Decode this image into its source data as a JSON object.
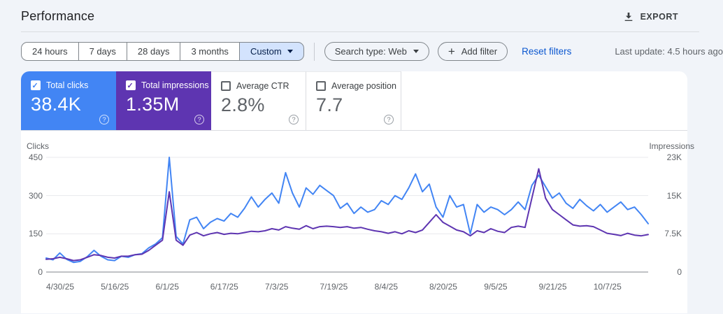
{
  "header": {
    "title": "Performance",
    "export_label": "EXPORT"
  },
  "filters": {
    "date_ranges": [
      "24 hours",
      "7 days",
      "28 days",
      "3 months",
      "Custom"
    ],
    "selected_range": "Custom",
    "search_type": "Search type: Web",
    "add_filter_label": "Add filter",
    "reset_filters_label": "Reset filters",
    "last_update": "Last update: 4.5 hours ago"
  },
  "metric_cards": [
    {
      "label": "Total clicks",
      "value": "38.4K",
      "checked": true,
      "color": "#4285f4"
    },
    {
      "label": "Total impressions",
      "value": "1.35M",
      "checked": true,
      "color": "#5e35b1"
    },
    {
      "label": "Average CTR",
      "value": "2.8%",
      "checked": false
    },
    {
      "label": "Average position",
      "value": "7.7",
      "checked": false
    }
  ],
  "chart_data": {
    "type": "line",
    "x_tick_labels": [
      "4/30/25",
      "5/16/25",
      "6/1/25",
      "6/17/25",
      "7/3/25",
      "7/19/25",
      "8/4/25",
      "8/20/25",
      "9/5/25",
      "9/21/25",
      "10/7/25"
    ],
    "x_start": "4/30/25",
    "sample_interval_days": 2,
    "left_axis": {
      "label": "Clicks",
      "ticks": [
        "450",
        "300",
        "150",
        "0"
      ],
      "tick_values": [
        450,
        300,
        150,
        0
      ],
      "max": 450
    },
    "right_axis": {
      "label": "Impressions",
      "ticks": [
        "23K",
        "15K",
        "7.5K",
        "0"
      ],
      "tick_values": [
        22500,
        15000,
        7500,
        0
      ],
      "max": 22500
    },
    "grid": true,
    "legend_position": "none",
    "series": [
      {
        "name": "Clicks",
        "axis": "left",
        "color": "#4285f4",
        "values": [
          55,
          48,
          75,
          50,
          38,
          42,
          60,
          85,
          62,
          48,
          45,
          62,
          58,
          68,
          72,
          95,
          110,
          135,
          450,
          140,
          110,
          205,
          215,
          170,
          195,
          210,
          200,
          230,
          215,
          250,
          295,
          255,
          285,
          310,
          270,
          390,
          310,
          255,
          330,
          305,
          340,
          320,
          300,
          250,
          270,
          230,
          255,
          235,
          245,
          280,
          265,
          300,
          285,
          330,
          385,
          315,
          345,
          255,
          215,
          300,
          255,
          265,
          150,
          265,
          235,
          255,
          245,
          225,
          245,
          275,
          245,
          340,
          380,
          335,
          290,
          310,
          270,
          250,
          285,
          260,
          240,
          265,
          235,
          255,
          275,
          245,
          255,
          225,
          190
        ]
      },
      {
        "name": "Impressions",
        "axis": "right",
        "color": "#5e35b1",
        "values": [
          2500,
          2600,
          2900,
          2600,
          2250,
          2400,
          2900,
          3400,
          3250,
          2900,
          2750,
          3100,
          3100,
          3400,
          3500,
          4250,
          5250,
          6250,
          15750,
          6250,
          5250,
          7250,
          7750,
          7100,
          7500,
          7750,
          7400,
          7600,
          7500,
          7750,
          8000,
          7900,
          8100,
          8500,
          8250,
          8900,
          8600,
          8400,
          9100,
          8500,
          8900,
          9000,
          8900,
          8750,
          8900,
          8600,
          8750,
          8400,
          8100,
          7900,
          7600,
          7900,
          7500,
          8100,
          7750,
          8250,
          9750,
          11250,
          9750,
          9000,
          8250,
          7900,
          7100,
          8100,
          7750,
          8500,
          8000,
          7750,
          8750,
          9000,
          8750,
          14500,
          20250,
          14500,
          12250,
          11250,
          10250,
          9250,
          9000,
          9100,
          8900,
          8250,
          7600,
          7400,
          7150,
          7600,
          7250,
          7100,
          7350
        ]
      }
    ]
  }
}
